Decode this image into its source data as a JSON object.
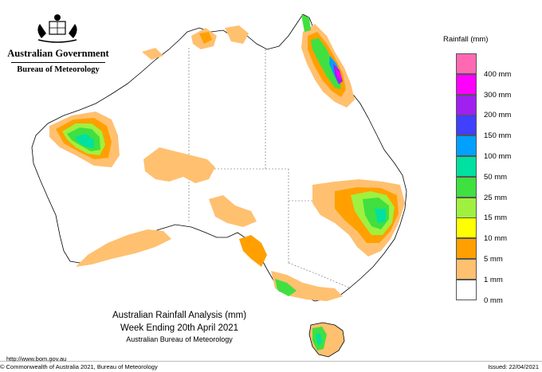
{
  "header": {
    "government": "Australian Government",
    "agency": "Bureau of Meteorology"
  },
  "legend": {
    "title": "Rainfall (mm)",
    "items": [
      {
        "label": "",
        "color": "#ff69b4"
      },
      {
        "label": "400 mm",
        "color": "#ff00ff"
      },
      {
        "label": "300 mm",
        "color": "#a020f0"
      },
      {
        "label": "200 mm",
        "color": "#4040ff"
      },
      {
        "label": "150 mm",
        "color": "#00a0ff"
      },
      {
        "label": "100 mm",
        "color": "#00e0a0"
      },
      {
        "label": "50 mm",
        "color": "#40e040"
      },
      {
        "label": "25 mm",
        "color": "#a0f040"
      },
      {
        "label": "15 mm",
        "color": "#ffff00"
      },
      {
        "label": "10 mm",
        "color": "#ffa000"
      },
      {
        "label": "5 mm",
        "color": "#ffc070"
      },
      {
        "label": "1 mm",
        "color": "#ffffff"
      },
      {
        "label": "0 mm",
        "color": ""
      }
    ]
  },
  "caption": {
    "line1": "Australian Rainfall Analysis (mm)",
    "line2": "Week Ending 20th April 2021",
    "line3": "Australian Bureau of Meteorology"
  },
  "footer": {
    "url": "http://www.bom.gov.au",
    "copyright": "© Commonwealth of Australia 2021, Bureau of Meteorology",
    "issued": "Issued: 22/04/2021"
  }
}
